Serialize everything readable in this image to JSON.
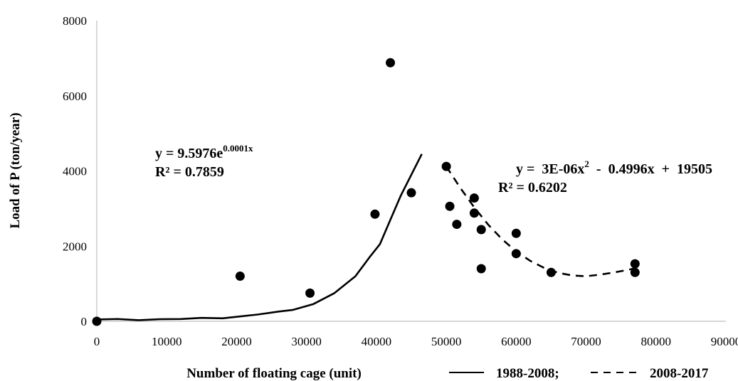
{
  "chart_data": {
    "type": "scatter",
    "xlabel": "Number of floating cage (unit)",
    "ylabel": "Load of P (ton/year)",
    "xlim": [
      0,
      90000
    ],
    "ylim": [
      0,
      8000
    ],
    "x_ticks": [
      "0",
      "10000",
      "20000",
      "30000",
      "40000",
      "50000",
      "60000",
      "70000",
      "80000",
      "90000"
    ],
    "y_ticks": [
      "0",
      "2000",
      "4000",
      "6000",
      "8000"
    ],
    "grid": false,
    "points": [
      {
        "x": 0,
        "y": 0
      },
      {
        "x": 20500,
        "y": 1200
      },
      {
        "x": 30500,
        "y": 750
      },
      {
        "x": 39800,
        "y": 2850
      },
      {
        "x": 42000,
        "y": 6880
      },
      {
        "x": 45000,
        "y": 3420
      },
      {
        "x": 50000,
        "y": 4120
      },
      {
        "x": 50500,
        "y": 3060
      },
      {
        "x": 51500,
        "y": 2580
      },
      {
        "x": 54000,
        "y": 3280
      },
      {
        "x": 54000,
        "y": 2880
      },
      {
        "x": 55000,
        "y": 2440
      },
      {
        "x": 55000,
        "y": 1400
      },
      {
        "x": 60000,
        "y": 2340
      },
      {
        "x": 60000,
        "y": 1800
      },
      {
        "x": 65000,
        "y": 1300
      },
      {
        "x": 77000,
        "y": 1530
      },
      {
        "x": 77000,
        "y": 1300
      }
    ],
    "trendlines": [
      {
        "name": "1988-2008",
        "style": "solid",
        "equation": {
          "base": "y = 9.5976e",
          "sup": "0.0001x"
        },
        "r2": "R² = 0.7859",
        "x": [
          0,
          3000,
          6000,
          9000,
          12000,
          15000,
          18000,
          20000,
          23000,
          26000,
          28000,
          31000,
          34000,
          37000,
          39000,
          40500,
          42000,
          43500,
          45000,
          46500
        ],
        "y": [
          50,
          60,
          30,
          55,
          60,
          90,
          80,
          120,
          180,
          260,
          300,
          460,
          750,
          1200,
          1700,
          2050,
          2700,
          3350,
          3900,
          4450
        ]
      },
      {
        "name": "2008-2017",
        "style": "dashed",
        "equation": {
          "base": "y =  3E-06x",
          "sup": "2",
          "rest": "  -  0.4996x  +  19505"
        },
        "r2": "R² = 0.6202",
        "x": [
          50000,
          52000,
          54000,
          56000,
          58000,
          60000,
          62000,
          64000,
          66000,
          68000,
          70000,
          72000,
          74000,
          76000,
          77000
        ],
        "y": [
          4120,
          3550,
          3030,
          2570,
          2180,
          1860,
          1610,
          1420,
          1290,
          1220,
          1200,
          1240,
          1300,
          1370,
          1410
        ]
      }
    ],
    "legend": {
      "placement": "bottom-right",
      "entries": [
        {
          "label": "1988-2008;",
          "style": "solid"
        },
        {
          "label": "2008-2017",
          "style": "dashed"
        }
      ]
    },
    "colors": {
      "marker": "#000000",
      "line": "#000000",
      "axis": "#bfbfbf"
    }
  }
}
